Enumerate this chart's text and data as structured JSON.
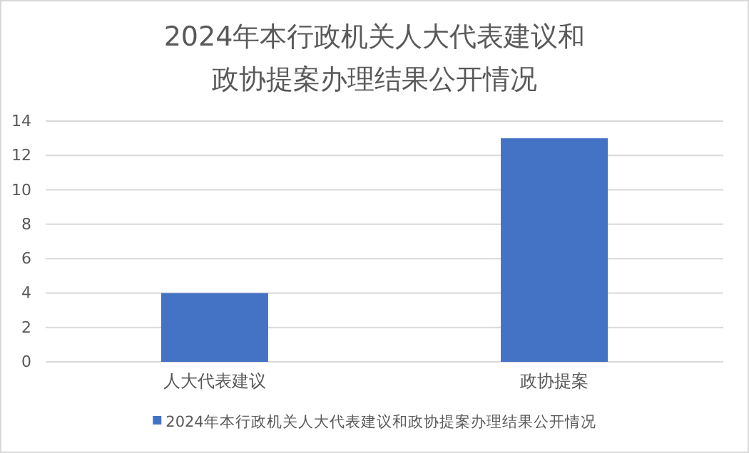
{
  "chart_data": {
    "type": "bar",
    "title": "2024年本行政机关人大代表建议和政协提案办理结果公开情况",
    "categories": [
      "人大代表建议",
      "政协提案"
    ],
    "series": [
      {
        "name": "2024年本行政机关人大代表建议和政协提案办理结果公开情况",
        "color": "#4472c4",
        "values": [
          4,
          13
        ]
      }
    ],
    "ylim": [
      0,
      14
    ],
    "yticks": [
      0,
      2,
      4,
      6,
      8,
      10,
      12,
      14
    ],
    "grid": "y",
    "legend": "bottom"
  }
}
